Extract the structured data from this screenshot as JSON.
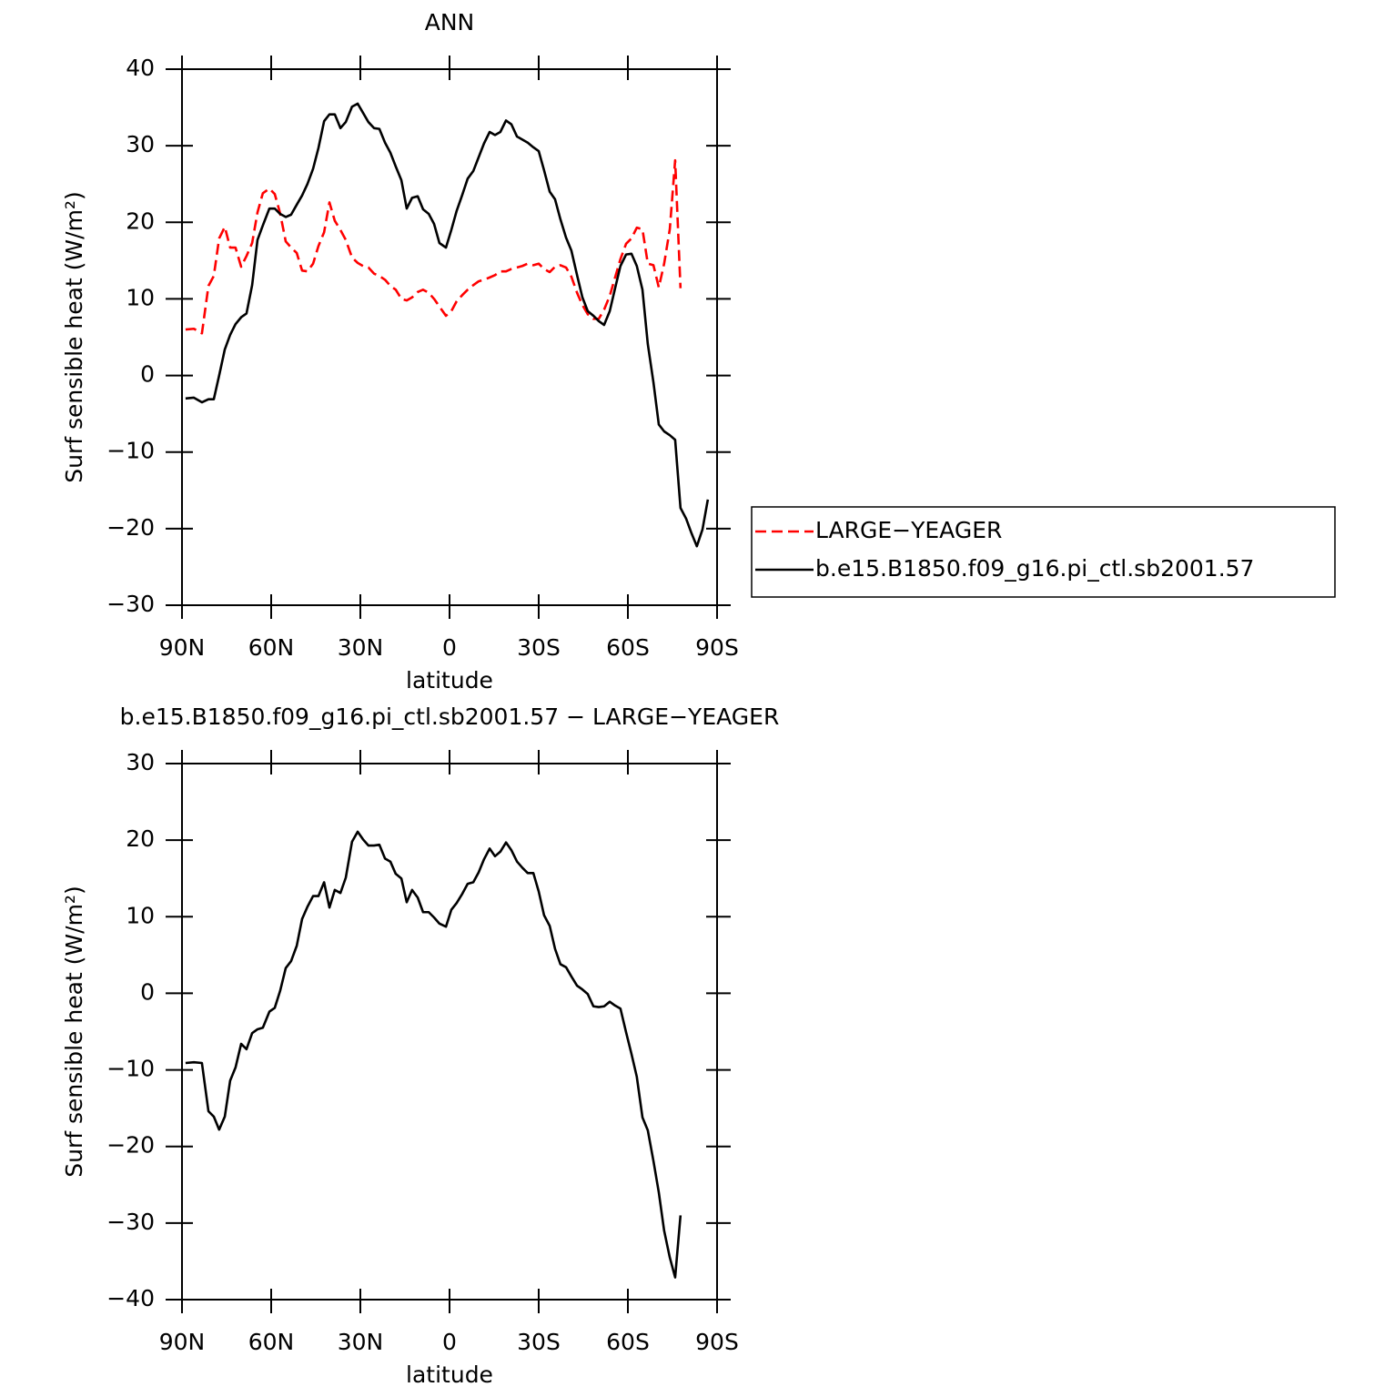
{
  "chart_data": [
    {
      "type": "line",
      "title": "ANN",
      "xlabel": "latitude",
      "ylabel": "Surf sensible heat (W/m²)",
      "x": [
        88.8,
        86.0,
        83.3,
        81.1,
        79.3,
        77.5,
        75.6,
        73.8,
        72.0,
        70.1,
        68.3,
        66.4,
        64.6,
        62.8,
        60.6,
        58.8,
        57.0,
        55.1,
        53.3,
        51.4,
        49.6,
        47.8,
        45.9,
        44.1,
        42.2,
        40.4,
        38.6,
        36.7,
        34.9,
        32.8,
        30.9,
        29.1,
        27.3,
        25.4,
        23.6,
        21.7,
        19.9,
        18.1,
        16.2,
        14.4,
        12.6,
        10.7,
        8.9,
        7.0,
        5.2,
        3.4,
        1.2,
        -0.6,
        -2.4,
        -4.3,
        -6.1,
        -8.0,
        -9.8,
        -11.6,
        -13.5,
        -15.3,
        -17.1,
        -19.0,
        -20.8,
        -22.7,
        -24.5,
        -26.3,
        -28.2,
        -30.0,
        -31.8,
        -33.7,
        -35.5,
        -37.3,
        -39.2,
        -41.0,
        -42.9,
        -44.7,
        -46.5,
        -48.4,
        -50.2,
        -52.0,
        -53.9,
        -55.7,
        -57.5,
        -59.4,
        -61.2,
        -63.0,
        -64.9,
        -66.7,
        -68.6,
        -70.4,
        -72.2,
        -74.1,
        -75.9,
        -77.7,
        -79.6,
        -81.4,
        -83.2,
        -85.1,
        -86.9
      ],
      "xlim": [
        90,
        -90
      ],
      "xticks": [
        {
          "value": 90,
          "label": "90N"
        },
        {
          "value": 60,
          "label": "60N"
        },
        {
          "value": 30,
          "label": "30N"
        },
        0,
        {
          "value": -30,
          "label": "30S"
        },
        {
          "value": -60,
          "label": "60S"
        },
        {
          "value": -90,
          "label": "90S"
        }
      ],
      "ylim": [
        -30,
        40
      ],
      "yticks": [
        {
          "value": -30,
          "label": "−30"
        },
        {
          "value": -20,
          "label": "−20"
        },
        {
          "value": -10,
          "label": "−10"
        },
        0,
        10,
        20,
        30,
        40
      ],
      "legend": "right",
      "series": [
        {
          "name": "LARGE−YEAGER",
          "color": "#ff0000",
          "dashed": true,
          "values": [
            6.0,
            6.1,
            5.5,
            11.7,
            13.0,
            17.9,
            19.4,
            16.7,
            16.7,
            14.2,
            15.6,
            17.3,
            21.3,
            23.8,
            24.4,
            23.7,
            21.2,
            17.5,
            16.7,
            16.0,
            13.7,
            13.6,
            14.6,
            16.9,
            18.7,
            22.6,
            20.2,
            19.0,
            17.7,
            15.4,
            14.7,
            14.3,
            14.1,
            13.3,
            13.0,
            12.5,
            11.7,
            11.2,
            10.0,
            9.8,
            10.2,
            10.9,
            11.2,
            10.8,
            10.0,
            9.0,
            7.8,
            8.4,
            9.7,
            10.5,
            11.2,
            11.8,
            12.3,
            12.5,
            12.8,
            13.1,
            13.6,
            13.6,
            13.9,
            14.1,
            14.3,
            14.6,
            14.4,
            14.6,
            13.9,
            13.5,
            14.2,
            14.4,
            14.1,
            12.9,
            10.8,
            9.2,
            8.0,
            7.4,
            7.4,
            8.6,
            10.4,
            12.8,
            15.2,
            17.2,
            17.9,
            19.3,
            19.1,
            14.6,
            14.4,
            11.5,
            14.6,
            19.1,
            28.1,
            11.4,
            null,
            null,
            null,
            null,
            null
          ]
        },
        {
          "name": "b.e15.B1850.f09_g16.pi_ctl.sb2001.57",
          "color": "#000000",
          "dashed": false,
          "values": [
            -3.0,
            -2.9,
            -3.5,
            -3.1,
            -3.1,
            0.0,
            3.4,
            5.3,
            6.7,
            7.6,
            8.1,
            11.8,
            17.7,
            19.6,
            21.8,
            21.8,
            21.1,
            20.7,
            21.0,
            22.3,
            23.5,
            25.0,
            27.0,
            29.7,
            33.2,
            34.1,
            34.1,
            32.3,
            33.1,
            35.1,
            35.5,
            34.3,
            33.1,
            32.3,
            32.2,
            30.4,
            29.1,
            27.3,
            25.5,
            21.8,
            23.2,
            23.4,
            21.7,
            21.1,
            19.8,
            17.3,
            16.7,
            19.0,
            21.5,
            23.6,
            25.7,
            26.7,
            28.5,
            30.3,
            31.8,
            31.4,
            31.8,
            33.3,
            32.8,
            31.2,
            30.8,
            30.4,
            29.8,
            29.3,
            26.8,
            24.0,
            23.0,
            20.4,
            18.0,
            16.3,
            13.1,
            10.2,
            8.4,
            7.8,
            7.1,
            6.6,
            8.4,
            11.4,
            14.3,
            15.8,
            15.9,
            14.3,
            11.2,
            4.1,
            -0.9,
            -6.4,
            -7.3,
            -7.8,
            -8.4,
            -17.3,
            -18.7,
            -20.6,
            -22.3,
            -20.1,
            -16.2
          ]
        }
      ]
    },
    {
      "type": "line",
      "title": "b.e15.B1850.f09_g16.pi_ctl.sb2001.57 − LARGE−YEAGER",
      "xlabel": "latitude",
      "ylabel": "Surf sensible heat (W/m²)",
      "x": [
        88.8,
        86.0,
        83.3,
        81.1,
        79.3,
        77.5,
        75.6,
        73.8,
        72.0,
        70.1,
        68.3,
        66.4,
        64.6,
        62.8,
        60.6,
        58.8,
        57.0,
        55.1,
        53.3,
        51.4,
        49.6,
        47.8,
        45.9,
        44.1,
        42.2,
        40.4,
        38.6,
        36.7,
        34.9,
        32.8,
        30.9,
        29.1,
        27.3,
        25.4,
        23.6,
        21.7,
        19.9,
        18.1,
        16.2,
        14.4,
        12.6,
        10.7,
        8.9,
        7.0,
        5.2,
        3.4,
        1.2,
        -0.6,
        -2.4,
        -4.3,
        -6.1,
        -8.0,
        -9.8,
        -11.6,
        -13.5,
        -15.3,
        -17.1,
        -19.0,
        -20.8,
        -22.7,
        -24.5,
        -26.3,
        -28.2,
        -30.0,
        -31.8,
        -33.7,
        -35.5,
        -37.3,
        -39.2,
        -41.0,
        -42.9,
        -44.7,
        -46.5,
        -48.4,
        -50.2,
        -52.0,
        -53.9,
        -55.7,
        -57.5,
        -59.4,
        -61.2,
        -63.0,
        -64.9,
        -66.7,
        -68.6,
        -70.4,
        -72.2,
        -74.1,
        -75.9,
        -77.7
      ],
      "xlim": [
        90,
        -90
      ],
      "xticks": [
        {
          "value": 90,
          "label": "90N"
        },
        {
          "value": 60,
          "label": "60N"
        },
        {
          "value": 30,
          "label": "30N"
        },
        0,
        {
          "value": -30,
          "label": "30S"
        },
        {
          "value": -60,
          "label": "60S"
        },
        {
          "value": -90,
          "label": "90S"
        }
      ],
      "ylim": [
        -40,
        30
      ],
      "yticks": [
        {
          "value": -40,
          "label": "−40"
        },
        {
          "value": -30,
          "label": "−30"
        },
        {
          "value": -20,
          "label": "−20"
        },
        {
          "value": -10,
          "label": "−10"
        },
        0,
        10,
        20,
        30
      ],
      "series": [
        {
          "color": "#000000",
          "dashed": false,
          "values": [
            -9.1,
            -9.0,
            -9.1,
            -15.4,
            -16.1,
            -17.8,
            -16.1,
            -11.4,
            -9.7,
            -6.6,
            -7.3,
            -5.2,
            -4.7,
            -4.5,
            -2.4,
            -1.9,
            0.3,
            3.3,
            4.2,
            6.2,
            9.7,
            11.3,
            12.7,
            12.7,
            14.5,
            11.2,
            13.5,
            13.1,
            15.1,
            19.8,
            21.1,
            20.1,
            19.3,
            19.3,
            19.4,
            17.6,
            17.2,
            15.6,
            15.0,
            11.9,
            13.5,
            12.5,
            10.6,
            10.6,
            9.9,
            9.1,
            8.7,
            10.9,
            11.8,
            13.0,
            14.3,
            14.5,
            15.8,
            17.5,
            18.9,
            17.9,
            18.5,
            19.7,
            18.7,
            17.2,
            16.4,
            15.7,
            15.7,
            13.3,
            10.2,
            8.8,
            5.8,
            3.8,
            3.4,
            2.2,
            1.0,
            0.5,
            -0.1,
            -1.7,
            -1.8,
            -1.7,
            -1.1,
            -1.6,
            -2.0,
            -5.1,
            -7.9,
            -10.9,
            -16.2,
            -17.9,
            -21.9,
            -26.0,
            -31.0,
            -34.5,
            -37.1,
            -29.0
          ]
        }
      ]
    }
  ]
}
